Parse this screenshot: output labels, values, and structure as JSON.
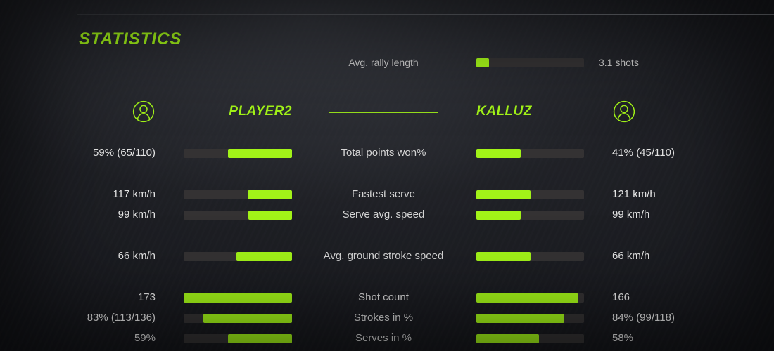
{
  "title": "STATISTICS",
  "colors": {
    "accent": "#a2f318",
    "bar_track": "#343233",
    "text_primary": "#e4e4e4",
    "text_secondary": "#d4d4d4"
  },
  "rally": {
    "label": "Avg. rally length",
    "value_text": "3.1 shots",
    "fill_pct": 12
  },
  "players": {
    "left": "PLAYER2",
    "right": "KALLUZ"
  },
  "rows": [
    {
      "label": "Total points won%",
      "left": {
        "text": "59% (65/110)",
        "fill_pct": 59
      },
      "right": {
        "text": "41% (45/110)",
        "fill_pct": 41
      }
    },
    {
      "label": "Fastest serve",
      "left": {
        "text": "117 km/h",
        "fill_pct": 41
      },
      "right": {
        "text": "121 km/h",
        "fill_pct": 50
      }
    },
    {
      "label": "Serve avg. speed",
      "left": {
        "text": "99 km/h",
        "fill_pct": 40
      },
      "right": {
        "text": "99 km/h",
        "fill_pct": 41
      }
    },
    {
      "label": "Avg. ground stroke speed",
      "left": {
        "text": "66 km/h",
        "fill_pct": 51
      },
      "right": {
        "text": "66 km/h",
        "fill_pct": 50
      }
    },
    {
      "label": "Shot count",
      "left": {
        "text": "173",
        "fill_pct": 100
      },
      "right": {
        "text": "166",
        "fill_pct": 95
      }
    },
    {
      "label": "Strokes in %",
      "left": {
        "text": "83% (113/136)",
        "fill_pct": 82
      },
      "right": {
        "text": "84% (99/118)",
        "fill_pct": 82
      }
    },
    {
      "label": "Serves in %",
      "left": {
        "text": "59%",
        "fill_pct": 59
      },
      "right": {
        "text": "58%",
        "fill_pct": 58
      }
    }
  ]
}
